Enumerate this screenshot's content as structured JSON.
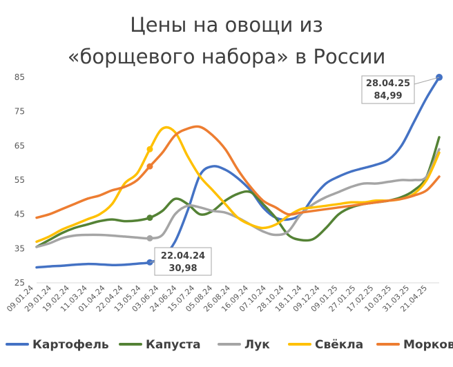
{
  "chart_data": {
    "type": "line",
    "title_lines": [
      "Цены на овощи из",
      "«борщевого набора» в России"
    ],
    "ylim": [
      25,
      85
    ],
    "yticks": [
      25,
      35,
      45,
      55,
      65,
      75,
      85
    ],
    "x_tick_labels": [
      "09.01.24",
      "29.01.24",
      "19.02.24",
      "11.03.24",
      "01.04.24",
      "22.04.24",
      "13.05.24",
      "03.06.24",
      "24.06.24",
      "15.07.24",
      "05.08.24",
      "26.08.24",
      "16.09.24",
      "07.10.24",
      "28.10.24",
      "18.11.24",
      "09.12.24",
      "09.01.25",
      "27.01.25",
      "17.02.25",
      "10.03.25",
      "31.03.25",
      "21.04.25"
    ],
    "series": [
      {
        "name": "Картофель",
        "color": "#4472C4",
        "values": [
          29.5,
          29.8,
          30.0,
          30.3,
          30.5,
          30.4,
          30.2,
          30.3,
          30.6,
          30.98,
          32.5,
          37,
          46,
          56.5,
          59,
          58,
          55.5,
          52,
          47,
          44,
          43.5,
          45,
          50,
          54,
          56,
          57.5,
          58.5,
          59.5,
          61,
          65,
          72,
          79,
          84.99
        ]
      },
      {
        "name": "Капуста",
        "color": "#548235",
        "values": [
          35.5,
          37.5,
          39.5,
          41,
          42,
          43,
          43.5,
          43,
          43.2,
          44,
          46,
          49.5,
          48,
          45,
          46,
          49,
          51,
          51.5,
          48,
          44,
          39,
          37.5,
          37.8,
          41,
          45,
          47,
          48,
          48.5,
          49,
          50,
          52,
          56,
          67.5
        ]
      },
      {
        "name": "Лук",
        "color": "#A5A5A5",
        "values": [
          35.5,
          36.5,
          38,
          38.8,
          39,
          39,
          38.8,
          38.5,
          38.2,
          38,
          39,
          45,
          47.5,
          47,
          46,
          45.5,
          44,
          42,
          40,
          39,
          40,
          45,
          48,
          50,
          51.5,
          53,
          54,
          54,
          54.5,
          55,
          55,
          56,
          64
        ]
      },
      {
        "name": "Свёкла",
        "color": "#FFC000",
        "values": [
          37,
          38.5,
          40.5,
          42,
          43.5,
          45,
          48,
          54,
          57,
          64,
          70,
          69,
          62,
          56,
          52,
          48,
          44,
          42,
          41,
          42,
          44.5,
          46.5,
          47,
          47.5,
          48,
          48.5,
          48.5,
          49,
          49,
          49.5,
          51,
          55,
          63
        ]
      },
      {
        "name": "Морковь",
        "color": "#ED7D31",
        "values": [
          44,
          45,
          46.5,
          48,
          49.5,
          50.5,
          52,
          53,
          55,
          59,
          63,
          68,
          70,
          70.5,
          68,
          64,
          58,
          53,
          49,
          47,
          45,
          45.5,
          46,
          46.5,
          47,
          47.5,
          48,
          48.5,
          49,
          49.5,
          50.5,
          52,
          56
        ]
      }
    ],
    "callouts": [
      {
        "date": "22.04.24",
        "value": "30,98"
      },
      {
        "date": "28.04.25",
        "value": "84,99"
      }
    ],
    "legend_position": "bottom"
  }
}
